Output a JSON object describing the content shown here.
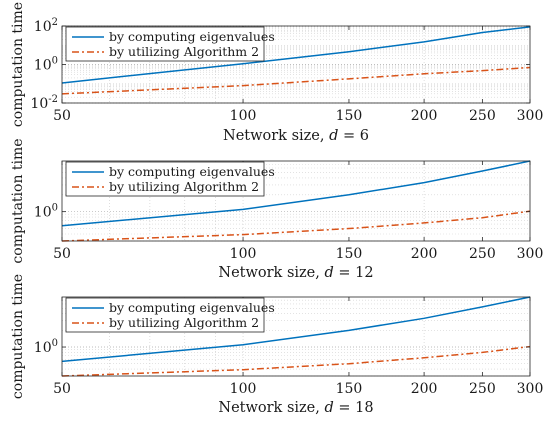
{
  "chart_data": [
    {
      "type": "line",
      "xscale": "log",
      "yscale": "log",
      "xlabel": "Network size, d = 6",
      "xlabel_main": "Network size,",
      "xlabel_var": "d",
      "xlabel_value": "= 6",
      "ylabel": "computation time",
      "xlim": [
        50,
        300
      ],
      "ylim": [
        0.01,
        100
      ],
      "xticks": [
        50,
        100,
        150,
        200,
        250,
        300
      ],
      "yticks": [
        {
          "value": 0.01,
          "base": "10",
          "exp": "-2"
        },
        {
          "value": 1,
          "base": "10",
          "exp": "0"
        },
        {
          "value": 100,
          "base": "10",
          "exp": "2"
        }
      ],
      "grid": true,
      "legend_position": "top-left",
      "series": [
        {
          "name": "by computing eigenvalues",
          "color": "#0072BD",
          "style": "solid",
          "x": [
            50,
            100,
            150,
            200,
            250,
            300
          ],
          "y": [
            0.11,
            1.1,
            4.6,
            15,
            46,
            90
          ]
        },
        {
          "name": "by utilizing Algorithm 2",
          "color": "#D95319",
          "style": "dashdot",
          "x": [
            50,
            100,
            150,
            200,
            250,
            300
          ],
          "y": [
            0.03,
            0.08,
            0.18,
            0.33,
            0.48,
            0.7
          ]
        }
      ]
    },
    {
      "type": "line",
      "xscale": "log",
      "yscale": "log",
      "xlabel": "Network size, d = 12",
      "xlabel_main": "Network size,",
      "xlabel_var": "d",
      "xlabel_value": "= 12",
      "ylabel": "computation time",
      "xlim": [
        50,
        300
      ],
      "ylim": [
        0.3,
        8
      ],
      "xticks": [
        50,
        100,
        150,
        200,
        250,
        300
      ],
      "yticks": [
        {
          "value": 1,
          "base": "10",
          "exp": "0"
        }
      ],
      "grid": true,
      "legend_position": "top-left",
      "series": [
        {
          "name": "by computing eigenvalues",
          "color": "#0072BD",
          "style": "solid",
          "x": [
            50,
            100,
            150,
            200,
            250,
            300
          ],
          "y": [
            0.56,
            1.1,
            2.0,
            3.3,
            5.3,
            8.0
          ]
        },
        {
          "name": "by utilizing Algorithm 2",
          "color": "#D95319",
          "style": "dashdot",
          "x": [
            50,
            100,
            150,
            200,
            250,
            300
          ],
          "y": [
            0.3,
            0.39,
            0.5,
            0.63,
            0.78,
            1.02
          ]
        }
      ]
    },
    {
      "type": "line",
      "xscale": "log",
      "yscale": "log",
      "xlabel": "Network size, d = 18",
      "xlabel_main": "Network size,",
      "xlabel_var": "d",
      "xlabel_value": "= 18",
      "ylabel": "computation time",
      "xlim": [
        50,
        300
      ],
      "ylim": [
        0.3,
        8
      ],
      "xticks": [
        50,
        100,
        150,
        200,
        250,
        300
      ],
      "yticks": [
        {
          "value": 1,
          "base": "10",
          "exp": "0"
        }
      ],
      "grid": true,
      "legend_position": "top-left",
      "series": [
        {
          "name": "by computing eigenvalues",
          "color": "#0072BD",
          "style": "solid",
          "x": [
            50,
            100,
            150,
            200,
            250,
            300
          ],
          "y": [
            0.55,
            1.1,
            2.0,
            3.3,
            5.3,
            8.0
          ]
        },
        {
          "name": "by utilizing Algorithm 2",
          "color": "#D95319",
          "style": "dashdot",
          "x": [
            50,
            100,
            150,
            200,
            250,
            300
          ],
          "y": [
            0.3,
            0.39,
            0.5,
            0.64,
            0.8,
            1.02
          ]
        }
      ]
    }
  ]
}
